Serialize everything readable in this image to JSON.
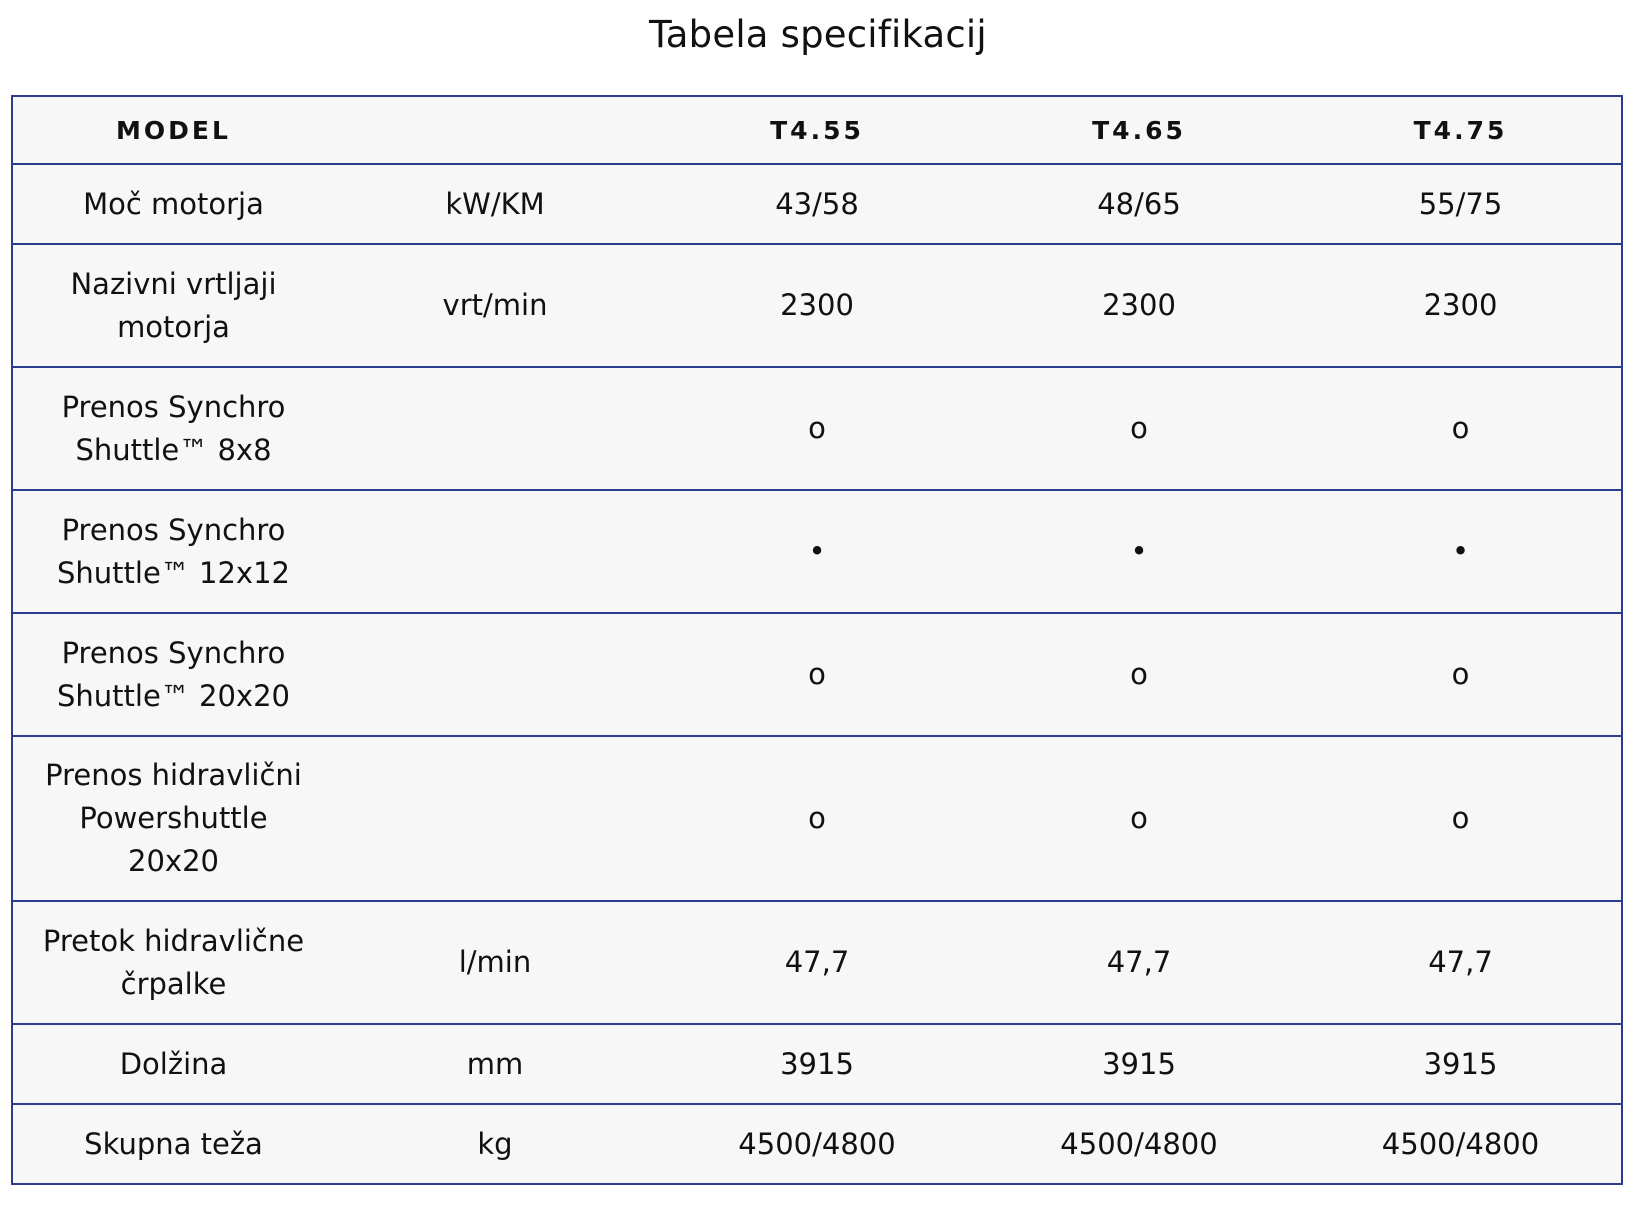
{
  "title": "Tabela specifikacij",
  "header": {
    "label": "MODEL",
    "unit": "",
    "models": [
      "T4.55",
      "T4.65",
      "T4.75"
    ]
  },
  "rows": [
    {
      "name": "Moč motorja",
      "unit": "kW/KM",
      "values": [
        "43/58",
        "48/65",
        "55/75"
      ]
    },
    {
      "name": "Nazivni vrtljaji motorja",
      "unit": "vrt/min",
      "values": [
        "2300",
        "2300",
        "2300"
      ]
    },
    {
      "name": "Prenos Synchro Shuttle™ 8x8",
      "unit": "",
      "values": [
        "o",
        "o",
        "o"
      ]
    },
    {
      "name": "Prenos Synchro Shuttle™ 12x12",
      "unit": "",
      "values": [
        "•",
        "•",
        "•"
      ]
    },
    {
      "name": "Prenos Synchro Shuttle™ 20x20",
      "unit": "",
      "values": [
        "o",
        "o",
        "o"
      ]
    },
    {
      "name": "Prenos hidravlični Powershuttle 20x20",
      "unit": "",
      "values": [
        "o",
        "o",
        "o"
      ]
    },
    {
      "name": "Pretok hidravlične črpalke",
      "unit": "l/min",
      "values": [
        "47,7",
        "47,7",
        "47,7"
      ]
    },
    {
      "name": "Dolžina",
      "unit": "mm",
      "values": [
        "3915",
        "3915",
        "3915"
      ]
    },
    {
      "name": "Skupna teža",
      "unit": "kg",
      "values": [
        "4500/4800",
        "4500/4800",
        "4500/4800"
      ]
    }
  ],
  "colors": {
    "border": "#2a3d8f",
    "cell_background": "#f7f7f7",
    "text": "#111111"
  }
}
